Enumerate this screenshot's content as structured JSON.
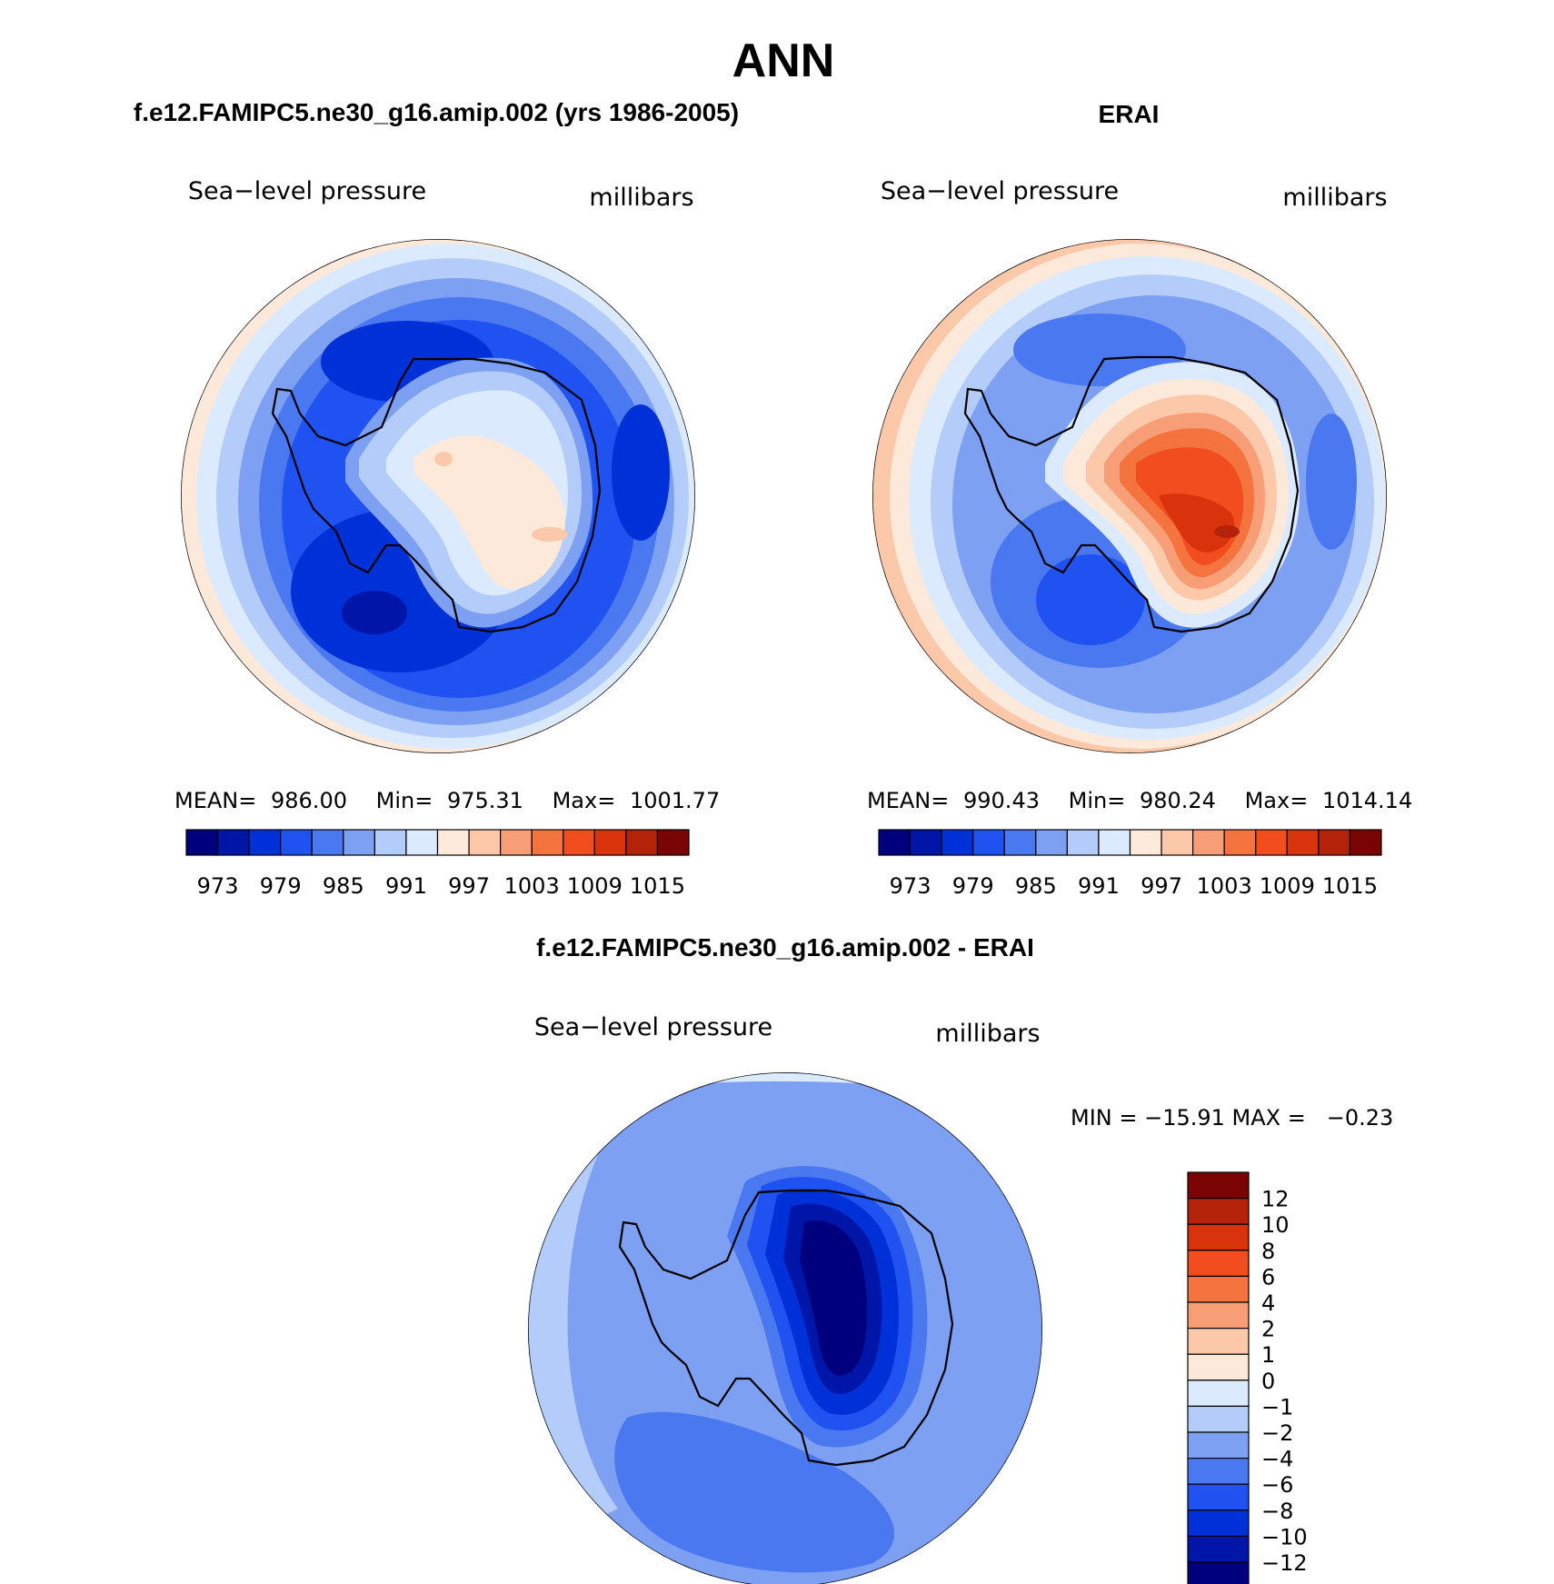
{
  "title": "ANN",
  "panels": [
    {
      "heading": "f.e12.FAMIPC5.ne30_g16.amip.002 (yrs 1986-2005)",
      "variable": "Sea−level pressure",
      "units": "millibars",
      "stats": {
        "mean_label": "MEAN=",
        "mean": "986.00",
        "min_label": "Min=",
        "min": "975.31",
        "max_label": "Max=",
        "max": "1001.77"
      }
    },
    {
      "heading": "ERAI",
      "variable": "Sea−level pressure",
      "units": "millibars",
      "stats": {
        "mean_label": "MEAN=",
        "mean": "990.43",
        "min_label": "Min=",
        "min": "980.24",
        "max_label": "Max=",
        "max": "1014.14"
      }
    },
    {
      "heading": "f.e12.FAMIPC5.ne30_g16.amip.002 - ERAI",
      "variable": "Sea−level pressure",
      "units": "millibars",
      "minmax_text": "MIN = −15.91 MAX =   −0.23"
    }
  ],
  "chart_data": [
    {
      "type": "heatmap",
      "title": "f.e12.FAMIPC5.ne30_g16.amip.002 (yrs 1986-2005)",
      "projection": "south polar stereographic",
      "colorbar_levels": [
        973,
        979,
        985,
        991,
        997,
        1003,
        1009,
        1015
      ],
      "colorbar_tick_labels": [
        "973",
        "979",
        "985",
        "991",
        "997",
        "1003",
        "1009",
        "1015"
      ],
      "colors": [
        "#00007f",
        "#0016a8",
        "#0030d8",
        "#1f52f0",
        "#4a78f0",
        "#7ea0f2",
        "#b4ccfa",
        "#dceafd",
        "#fde9da",
        "#fbc8aa",
        "#f79e76",
        "#f5733f",
        "#f14d1e",
        "#d8330d",
        "#b4220a",
        "#7a0404"
      ],
      "mean": 986.0,
      "min": 975.31,
      "max": 1001.77
    },
    {
      "type": "heatmap",
      "title": "ERAI",
      "projection": "south polar stereographic",
      "colorbar_levels": [
        973,
        979,
        985,
        991,
        997,
        1003,
        1009,
        1015
      ],
      "colorbar_tick_labels": [
        "973",
        "979",
        "985",
        "991",
        "997",
        "1003",
        "1009",
        "1015"
      ],
      "colors": [
        "#00007f",
        "#0016a8",
        "#0030d8",
        "#1f52f0",
        "#4a78f0",
        "#7ea0f2",
        "#b4ccfa",
        "#dceafd",
        "#fde9da",
        "#fbc8aa",
        "#f79e76",
        "#f5733f",
        "#f14d1e",
        "#d8330d",
        "#b4220a",
        "#7a0404"
      ],
      "mean": 990.43,
      "min": 980.24,
      "max": 1014.14
    },
    {
      "type": "heatmap",
      "title": "f.e12.FAMIPC5.ne30_g16.amip.002 - ERAI",
      "projection": "south polar stereographic",
      "colorbar_tick_labels": [
        "12",
        "10",
        "8",
        "6",
        "4",
        "2",
        "1",
        "0",
        "−1",
        "−2",
        "−4",
        "−6",
        "−8",
        "−10",
        "−12"
      ],
      "colors": [
        "#7a0404",
        "#b4220a",
        "#d8330d",
        "#f14d1e",
        "#f5733f",
        "#f79e76",
        "#fbc8aa",
        "#fde9da",
        "#dceafd",
        "#b4ccfa",
        "#7ea0f2",
        "#4a78f0",
        "#1f52f0",
        "#0030d8",
        "#0016a8",
        "#00007f"
      ],
      "min": -15.91,
      "max": -0.23
    }
  ]
}
